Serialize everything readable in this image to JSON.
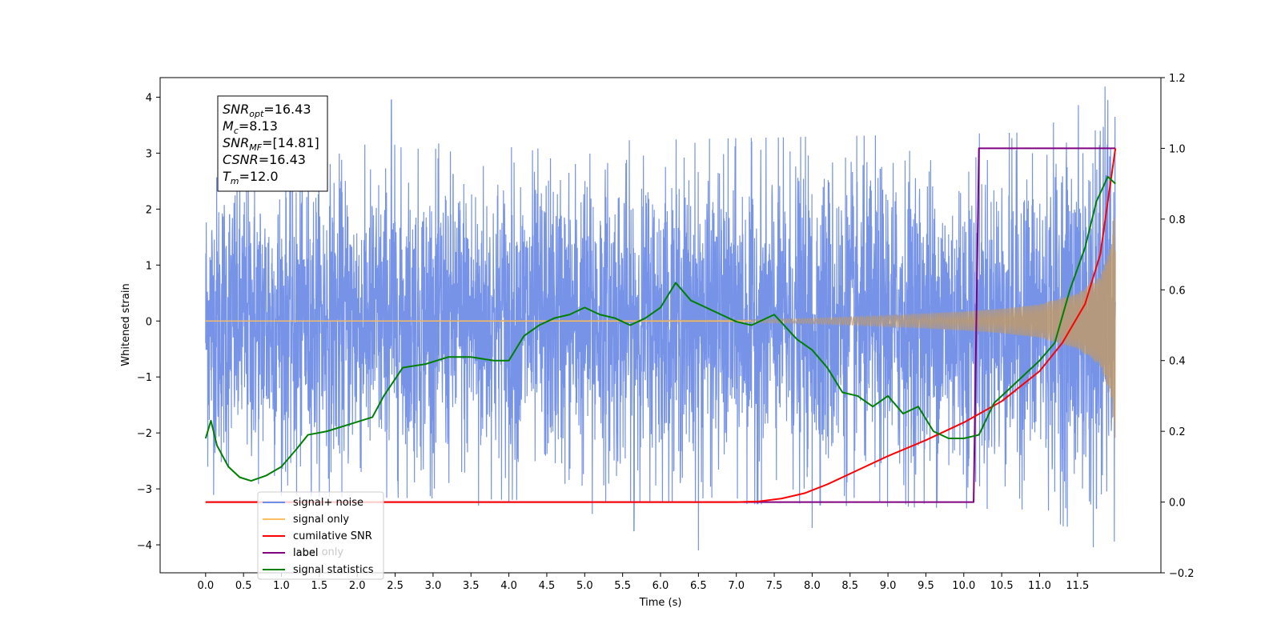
{
  "chart_data": {
    "type": "line",
    "xlabel": "Time (s)",
    "ylabel": "Whitened strain",
    "xlim": [
      -0.6,
      12.6
    ],
    "ylim": [
      -4.5,
      4.35
    ],
    "ylim_right": [
      -0.2,
      1.2
    ],
    "x_ticks": [
      "0.0",
      "0.5",
      "1.0",
      "1.5",
      "2.0",
      "2.5",
      "3.0",
      "3.5",
      "4.0",
      "4.5",
      "5.0",
      "5.5",
      "6.0",
      "6.5",
      "7.0",
      "7.5",
      "8.0",
      "8.5",
      "9.0",
      "9.5",
      "10.0",
      "10.5",
      "11.0",
      "11.5"
    ],
    "y_ticks_left": [
      "4",
      "3",
      "2",
      "1",
      "0",
      "−1",
      "−2",
      "−3",
      "−4"
    ],
    "y_ticks_right": [
      "1.2",
      "1.0",
      "0.8",
      "0.6",
      "0.4",
      "0.2",
      "0.0",
      "−0.2"
    ],
    "grid": false,
    "legend_placement": "lower-left",
    "annotation": [
      {
        "base": "SNR",
        "sub": "opt",
        "value": "=16.43"
      },
      {
        "base": "M",
        "sub": "c",
        "value": "=8.13"
      },
      {
        "base": "SNR",
        "sub": "MF",
        "value": "=[14.81]"
      },
      {
        "base": "CSNR",
        "sub": "",
        "value": "=16.43"
      },
      {
        "base": "T",
        "sub": "m",
        "value": "=12.0"
      }
    ],
    "legend": [
      {
        "name": "signal+ noise",
        "color": "#6f8de6"
      },
      {
        "name": "signal only",
        "color": "#ffbf60"
      },
      {
        "name": "cumilative SNR",
        "color": "#ff0000"
      },
      {
        "name": "label",
        "color": "#800080"
      },
      {
        "name": "signal statistics",
        "color": "#008000"
      }
    ],
    "hidden_legend_text": "label only",
    "series": [
      {
        "name": "signal+ noise",
        "axis": "left",
        "color": "#6f8de6",
        "render": "noise",
        "x_range": [
          0.0,
          12.0
        ],
        "envelope": [
          [
            0.0,
            2.3
          ],
          [
            6.0,
            2.4
          ],
          [
            11.0,
            2.5
          ],
          [
            12.0,
            3.2
          ]
        ],
        "spikes": [
          [
            2.45,
            3.95
          ],
          [
            11.9,
            3.95
          ],
          [
            11.8,
            3.4
          ],
          [
            6.5,
            -4.1
          ],
          [
            5.65,
            -3.75
          ],
          [
            5.1,
            -3.45
          ],
          [
            8.0,
            -3.7
          ],
          [
            11.75,
            -3.35
          ],
          [
            3.6,
            -3.3
          ],
          [
            4.0,
            -3.25
          ],
          [
            1.2,
            -3.1
          ]
        ]
      },
      {
        "name": "signal only",
        "axis": "left",
        "color": "#ffbf60",
        "render": "chirp",
        "x_range": [
          0.0,
          12.0
        ],
        "amplitude": [
          [
            0.0,
            0.0
          ],
          [
            7.0,
            0.02
          ],
          [
            8.0,
            0.05
          ],
          [
            9.0,
            0.1
          ],
          [
            10.0,
            0.17
          ],
          [
            10.5,
            0.22
          ],
          [
            11.0,
            0.3
          ],
          [
            11.5,
            0.5
          ],
          [
            11.8,
            0.8
          ],
          [
            11.95,
            1.4
          ],
          [
            12.0,
            2.2
          ]
        ]
      },
      {
        "name": "cumilative SNR",
        "axis": "right",
        "color": "#ff0000",
        "x": [
          0.0,
          6.0,
          7.0,
          7.3,
          7.6,
          7.9,
          8.2,
          8.6,
          9.0,
          9.5,
          10.0,
          10.5,
          11.0,
          11.3,
          11.6,
          11.8,
          12.0
        ],
        "values": [
          0.0,
          0.0,
          0.0,
          0.002,
          0.01,
          0.025,
          0.05,
          0.09,
          0.13,
          0.175,
          0.225,
          0.285,
          0.37,
          0.45,
          0.56,
          0.7,
          1.0
        ]
      },
      {
        "name": "label",
        "axis": "right",
        "color": "#800080",
        "x": [
          0.0,
          10.13,
          10.2,
          12.0
        ],
        "values": [
          0.0,
          0.0,
          1.0,
          1.0
        ]
      },
      {
        "name": "signal statistics",
        "axis": "right",
        "color": "#008000",
        "x": [
          0.0,
          0.07,
          0.15,
          0.3,
          0.45,
          0.6,
          0.8,
          1.0,
          1.2,
          1.35,
          1.6,
          1.9,
          2.2,
          2.35,
          2.6,
          2.9,
          3.2,
          3.5,
          3.8,
          4.0,
          4.2,
          4.4,
          4.6,
          4.8,
          5.0,
          5.2,
          5.4,
          5.6,
          5.8,
          6.0,
          6.2,
          6.4,
          6.6,
          6.8,
          7.0,
          7.2,
          7.5,
          7.8,
          8.0,
          8.2,
          8.4,
          8.6,
          8.8,
          9.0,
          9.2,
          9.4,
          9.6,
          9.8,
          10.0,
          10.2,
          10.4,
          10.6,
          10.8,
          11.0,
          11.2,
          11.4,
          11.6,
          11.75,
          11.9,
          12.0
        ],
        "values": [
          0.18,
          0.23,
          0.16,
          0.1,
          0.07,
          0.06,
          0.075,
          0.1,
          0.15,
          0.19,
          0.2,
          0.22,
          0.24,
          0.3,
          0.38,
          0.39,
          0.41,
          0.41,
          0.4,
          0.4,
          0.47,
          0.5,
          0.52,
          0.53,
          0.55,
          0.53,
          0.52,
          0.5,
          0.52,
          0.55,
          0.62,
          0.57,
          0.55,
          0.53,
          0.51,
          0.5,
          0.53,
          0.46,
          0.43,
          0.38,
          0.31,
          0.3,
          0.27,
          0.3,
          0.25,
          0.27,
          0.2,
          0.18,
          0.18,
          0.19,
          0.28,
          0.32,
          0.36,
          0.4,
          0.45,
          0.6,
          0.72,
          0.85,
          0.92,
          0.9
        ]
      }
    ]
  }
}
